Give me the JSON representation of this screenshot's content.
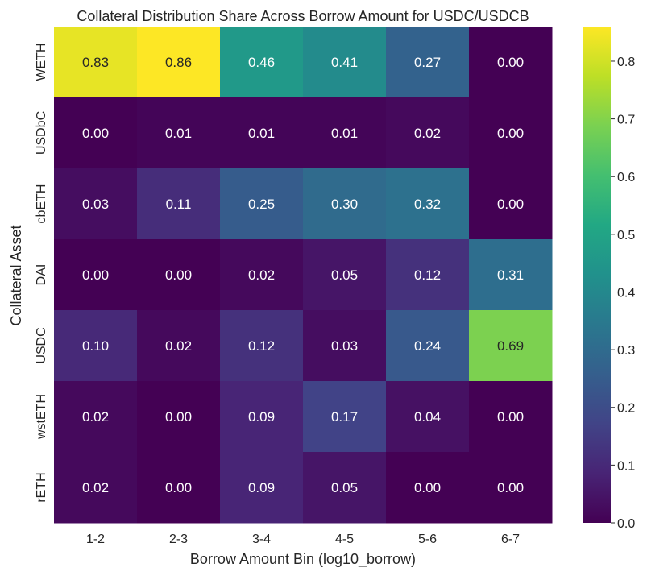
{
  "chart_data": {
    "type": "heatmap",
    "title": "Collateral Distribution Share Across Borrow Amount for USDC/USDCB",
    "xlabel": "Borrow Amount Bin (log10_borrow)",
    "ylabel": "Collateral Asset",
    "x_categories": [
      "1-2",
      "2-3",
      "3-4",
      "4-5",
      "5-6",
      "6-7"
    ],
    "y_categories": [
      "WETH",
      "USDbC",
      "cbETH",
      "DAI",
      "USDC",
      "wstETH",
      "rETH"
    ],
    "values": [
      [
        0.83,
        0.86,
        0.46,
        0.41,
        0.27,
        0.0
      ],
      [
        0.0,
        0.01,
        0.01,
        0.01,
        0.02,
        0.0
      ],
      [
        0.03,
        0.11,
        0.25,
        0.3,
        0.32,
        0.0
      ],
      [
        0.0,
        0.0,
        0.02,
        0.05,
        0.12,
        0.31
      ],
      [
        0.1,
        0.02,
        0.12,
        0.03,
        0.24,
        0.69
      ],
      [
        0.02,
        0.0,
        0.09,
        0.17,
        0.04,
        0.0
      ],
      [
        0.02,
        0.0,
        0.09,
        0.05,
        0.0,
        0.0
      ]
    ],
    "value_labels": [
      [
        "0.83",
        "0.86",
        "0.46",
        "0.41",
        "0.27",
        "0.00"
      ],
      [
        "0.00",
        "0.01",
        "0.01",
        "0.01",
        "0.02",
        "0.00"
      ],
      [
        "0.03",
        "0.11",
        "0.25",
        "0.30",
        "0.32",
        "0.00"
      ],
      [
        "0.00",
        "0.00",
        "0.02",
        "0.05",
        "0.12",
        "0.31"
      ],
      [
        "0.10",
        "0.02",
        "0.12",
        "0.03",
        "0.24",
        "0.69"
      ],
      [
        "0.02",
        "0.00",
        "0.09",
        "0.17",
        "0.04",
        "0.00"
      ],
      [
        "0.02",
        "0.00",
        "0.09",
        "0.05",
        "0.00",
        "0.00"
      ]
    ],
    "colormap": "viridis",
    "vmin": 0.0,
    "vmax": 0.86,
    "colorbar_ticks": [
      0.0,
      0.1,
      0.2,
      0.3,
      0.4,
      0.5,
      0.6,
      0.7,
      0.8
    ],
    "colorbar_tick_labels": [
      "0.0",
      "0.1",
      "0.2",
      "0.3",
      "0.4",
      "0.5",
      "0.6",
      "0.7",
      "0.8"
    ],
    "colors": {
      "text_dark": "#262626",
      "text_light": "#ffffff",
      "text_on_bright": "#262626"
    }
  }
}
